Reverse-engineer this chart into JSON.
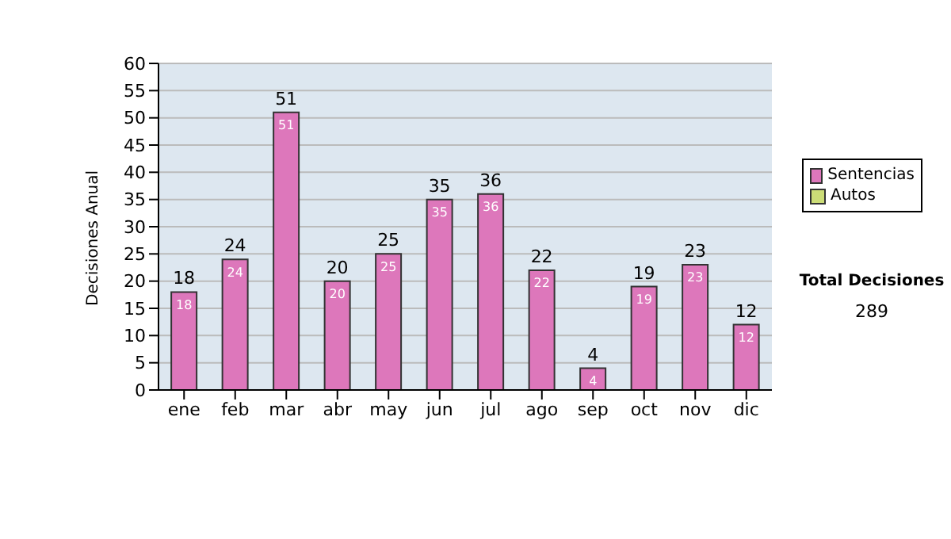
{
  "chart_data": {
    "type": "bar",
    "ylabel": "Decisiones Anual",
    "categories": [
      "ene",
      "feb",
      "mar",
      "abr",
      "may",
      "jun",
      "jul",
      "ago",
      "sep",
      "oct",
      "nov",
      "dic"
    ],
    "series": [
      {
        "name": "Sentencias",
        "color": "#dd77bb",
        "values": [
          18,
          24,
          51,
          20,
          25,
          35,
          36,
          22,
          4,
          19,
          23,
          12
        ]
      },
      {
        "name": "Autos",
        "color": "#ccdd77",
        "values": [
          null,
          null,
          null,
          null,
          null,
          null,
          null,
          null,
          null,
          null,
          null,
          null
        ]
      }
    ],
    "ylim": [
      0,
      60
    ],
    "yticks": [
      0,
      5,
      10,
      15,
      20,
      25,
      30,
      35,
      40,
      45,
      50,
      55,
      60
    ],
    "grid": "y",
    "legend": "right",
    "data_labels": true,
    "annotations": [
      "Total Decisiones",
      "289",
      {
        "text": "18",
        "x": "ene",
        "y": 18
      },
      {
        "text": "24",
        "x": "feb",
        "y": 24
      },
      {
        "text": "51",
        "x": "mar",
        "y": 51
      },
      {
        "text": "20",
        "x": "abr",
        "y": 20
      },
      {
        "text": "25",
        "x": "may",
        "y": 25
      },
      {
        "text": "35",
        "x": "jun",
        "y": 35
      },
      {
        "text": "36",
        "x": "jul",
        "y": 36
      },
      {
        "text": "22",
        "x": "ago",
        "y": 22
      },
      {
        "text": "4",
        "x": "sep",
        "y": 4
      },
      {
        "text": "19",
        "x": "oct",
        "y": 19
      },
      {
        "text": "23",
        "x": "nov",
        "y": 23
      },
      {
        "text": "12",
        "x": "dic",
        "y": 12
      }
    ]
  }
}
